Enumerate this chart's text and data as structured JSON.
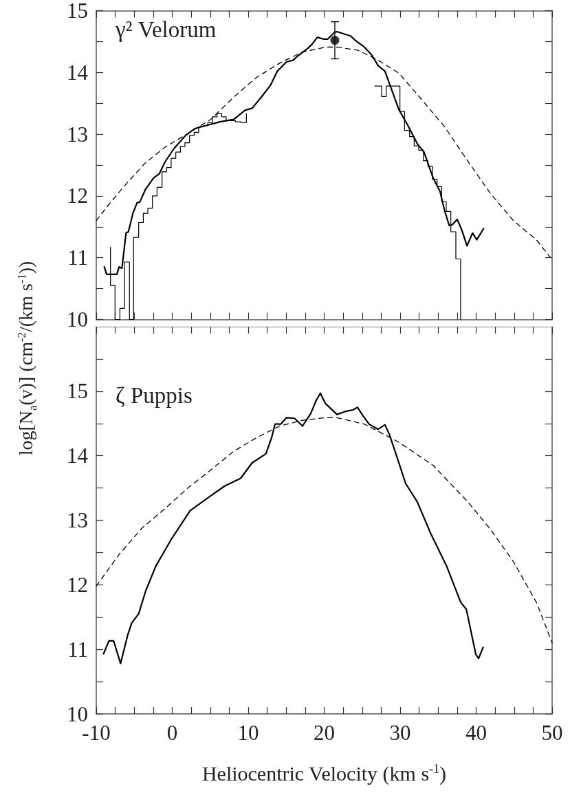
{
  "chart_data": [
    {
      "type": "line",
      "ylabel": "log[N$_{a}$(v)] (cm$^{-2}$/(km s$^{-1}$))",
      "annotations": [
        "γ² Velorum"
      ],
      "xlim": [
        -10,
        50
      ],
      "xticks": [
        -10,
        {
          "value": -7.5,
          "label": null
        },
        {
          "value": -5,
          "label": null
        },
        {
          "value": -2.5,
          "label": null
        },
        0,
        {
          "value": 2.5,
          "label": null
        },
        {
          "value": 5,
          "label": null
        },
        {
          "value": 7.5,
          "label": null
        },
        10,
        {
          "value": 12.5,
          "label": null
        },
        {
          "value": 15,
          "label": null
        },
        {
          "value": 17.5,
          "label": null
        },
        20,
        {
          "value": 22.5,
          "label": null
        },
        {
          "value": 25,
          "label": null
        },
        {
          "value": 27.5,
          "label": null
        },
        30,
        {
          "value": 32.5,
          "label": null
        },
        {
          "value": 35,
          "label": null
        },
        {
          "value": 37.5,
          "label": null
        },
        40,
        {
          "value": 42.5,
          "label": null
        },
        {
          "value": 45,
          "label": null
        },
        {
          "value": 47.5,
          "label": null
        },
        50
      ],
      "ylim": [
        10,
        15
      ],
      "yticks": [
        10,
        {
          "value": 10.5,
          "label": null
        },
        11,
        {
          "value": 11.5,
          "label": null
        },
        12,
        {
          "value": 12.5,
          "label": null
        },
        13,
        {
          "value": 13.5,
          "label": null
        },
        14,
        {
          "value": 14.5,
          "label": null
        },
        15
      ],
      "tick_labels": "y",
      "series": [
        {
          "type": "line",
          "color": "#000000",
          "line_style": "solid",
          "marker": "none",
          "x": [
            -8.94,
            -8.64,
            -7.29,
            -6.99,
            -6.62,
            -6.08,
            -5.77,
            -5.17,
            -4.63,
            -4.27,
            -3.51,
            -2.46,
            -1.7,
            -0.95,
            0.25,
            1.76,
            2.97,
            4.48,
            6.29,
            8.1,
            8.71,
            9.61,
            10.52,
            11.72,
            12.92,
            13.83,
            15.04,
            15.94,
            16.55,
            17.75,
            18.36,
            19.11,
            19.86,
            20.47,
            21.37,
            21.67,
            23.48,
            24.08,
            25.29,
            26.2,
            27.1,
            28.0,
            28.91,
            29.82,
            31.02,
            32.23,
            33.14,
            34.34,
            35.25,
            35.85,
            36.46,
            36.91,
            37.51,
            38.11,
            38.8,
            39.53,
            40.08,
            40.98
          ],
          "values": [
            10.85,
            10.73,
            10.73,
            10.85,
            10.83,
            11.4,
            11.42,
            11.72,
            11.89,
            11.9,
            12.11,
            12.29,
            12.36,
            12.55,
            12.77,
            12.98,
            13.09,
            13.14,
            13.2,
            13.24,
            13.3,
            13.39,
            13.42,
            13.6,
            13.79,
            14.02,
            14.17,
            14.2,
            14.27,
            14.38,
            14.45,
            14.57,
            14.54,
            14.54,
            14.65,
            14.66,
            14.59,
            14.52,
            14.41,
            14.29,
            14.11,
            14.02,
            13.71,
            13.4,
            13.14,
            12.85,
            12.71,
            12.29,
            12.07,
            11.76,
            11.52,
            11.54,
            11.62,
            11.45,
            11.19,
            11.4,
            11.29,
            11.47
          ]
        },
        {
          "type": "step",
          "color": "#000000",
          "line_style": "solid",
          "marker": "none",
          "x": [
            -8.13,
            -8.13,
            -7.53,
            -6.89,
            -6.29,
            -5.63,
            -5.09,
            -4.42,
            -3.81,
            -3.21,
            -2.61,
            -2.0,
            -1.34,
            -0.74,
            -0.14,
            0.47,
            1.07,
            1.67,
            2.28,
            2.88,
            3.48,
            4.09,
            4.69,
            5.29,
            5.9,
            6.5,
            7.1,
            8.31,
            9.0,
            9.76
          ],
          "values": [
            11.17,
            10.55,
            10,
            10.18,
            10.93,
            10,
            11.33,
            11.57,
            11.72,
            11.8,
            12.0,
            12.14,
            12.39,
            12.46,
            12.61,
            12.71,
            12.8,
            12.86,
            12.98,
            13.03,
            13.12,
            13.14,
            13.19,
            13.28,
            13.33,
            13.28,
            13.22,
            13.2,
            13.19,
            13.33
          ]
        },
        {
          "type": "step",
          "color": "#000000",
          "line_style": "solid",
          "marker": "none",
          "x": [
            26.65,
            27.56,
            28.16,
            29.97,
            30.57,
            31.24,
            31.84,
            32.44,
            33.05,
            33.65,
            34.25,
            34.86,
            35.46,
            36.06,
            36.67,
            37.33,
            37.96
          ],
          "values": [
            13.78,
            13.61,
            13.78,
            13.37,
            13.06,
            12.96,
            12.81,
            12.74,
            12.57,
            12.48,
            12.27,
            12.15,
            11.91,
            11.75,
            11.42,
            10.98,
            10
          ]
        },
        {
          "type": "line",
          "color": "#000000",
          "line_style": "dashed",
          "marker": "none",
          "x": [
            -10,
            -8.49,
            -6.38,
            -3.67,
            -0.95,
            2.06,
            5.08,
            8.1,
            11.11,
            14.13,
            17.15,
            20.16,
            21.67,
            24.39,
            26.8,
            29.82,
            32.83,
            35.85,
            38.87,
            41.88,
            44.9,
            47.92,
            49.73
          ],
          "values": [
            11.6,
            11.84,
            12.15,
            12.52,
            12.79,
            13.01,
            13.24,
            13.6,
            13.92,
            14.15,
            14.33,
            14.41,
            14.41,
            14.36,
            14.22,
            13.99,
            13.56,
            13.12,
            12.57,
            12.04,
            11.6,
            11.29,
            11.01
          ]
        },
        {
          "type": "scatter",
          "color": "#000000",
          "marker": "circle",
          "x": [
            21.4
          ],
          "values": [
            14.52
          ],
          "errors": [
            0.3
          ]
        }
      ]
    },
    {
      "type": "line",
      "xlabel": "Heliocentric Velocity (km s$^{-1}$)",
      "annotations": [
        "ζ Puppis"
      ],
      "xlim": [
        -10,
        50
      ],
      "xticks": [
        -10,
        {
          "value": -7.5,
          "label": null
        },
        {
          "value": -5,
          "label": null
        },
        {
          "value": -2.5,
          "label": null
        },
        0,
        {
          "value": 2.5,
          "label": null
        },
        {
          "value": 5,
          "label": null
        },
        {
          "value": 7.5,
          "label": null
        },
        10,
        {
          "value": 12.5,
          "label": null
        },
        {
          "value": 15,
          "label": null
        },
        {
          "value": 17.5,
          "label": null
        },
        20,
        {
          "value": 22.5,
          "label": null
        },
        {
          "value": 25,
          "label": null
        },
        {
          "value": 27.5,
          "label": null
        },
        30,
        {
          "value": 32.5,
          "label": null
        },
        {
          "value": 35,
          "label": null
        },
        {
          "value": 37.5,
          "label": null
        },
        40,
        {
          "value": 42.5,
          "label": null
        },
        {
          "value": 45,
          "label": null
        },
        {
          "value": 47.5,
          "label": null
        },
        50
      ],
      "ylim": [
        10,
        16
      ],
      "yticks": [
        10,
        {
          "value": 10.5,
          "label": null
        },
        11,
        {
          "value": 11.5,
          "label": null
        },
        12,
        {
          "value": 12.5,
          "label": null
        },
        13,
        {
          "value": 13.5,
          "label": null
        },
        14,
        {
          "value": 14.5,
          "label": null
        },
        15,
        {
          "value": 15.5,
          "label": null
        }
      ],
      "series": [
        {
          "type": "line",
          "color": "#000000",
          "line_style": "solid",
          "marker": "none",
          "x": [
            -9.04,
            -8.33,
            -7.71,
            -6.8,
            -5.84,
            -5.32,
            -4.42,
            -3.51,
            -2.16,
            -0.05,
            2.37,
            5.08,
            6.9,
            9.0,
            10.52,
            12.33,
            13.08,
            13.53,
            14.28,
            15.04,
            16.09,
            17.15,
            18.21,
            18.96,
            19.5,
            20.16,
            21.67,
            22.88,
            23.78,
            24.39,
            24.99,
            25.9,
            27.1,
            28.0,
            28.61,
            29.52,
            30.72,
            32.23,
            34.04,
            36.15,
            37.96,
            38.71,
            39.96,
            40.33,
            40.91
          ],
          "values": [
            10.93,
            11.13,
            11.13,
            10.78,
            11.23,
            11.41,
            11.55,
            11.9,
            12.29,
            12.72,
            13.15,
            13.38,
            13.53,
            13.65,
            13.89,
            14.03,
            14.28,
            14.49,
            14.49,
            14.59,
            14.58,
            14.46,
            14.65,
            14.86,
            14.97,
            14.81,
            14.64,
            14.69,
            14.71,
            14.75,
            14.64,
            14.49,
            14.41,
            14.48,
            14.32,
            14.0,
            13.57,
            13.29,
            12.79,
            12.28,
            11.73,
            11.62,
            10.92,
            10.86,
            11.03
          ]
        },
        {
          "type": "line",
          "color": "#000000",
          "line_style": "dashed",
          "marker": "none",
          "x": [
            -10,
            -6.99,
            -3.97,
            -0.95,
            2.06,
            5.08,
            8.1,
            11.11,
            14.13,
            17.15,
            20.16,
            21.67,
            25.29,
            29.82,
            34.34,
            38.87,
            41.88,
            44.9,
            47.92,
            49.12,
            50
          ],
          "values": [
            11.98,
            12.47,
            12.88,
            13.18,
            13.5,
            13.78,
            14.07,
            14.28,
            14.46,
            14.55,
            14.59,
            14.59,
            14.49,
            14.21,
            13.85,
            13.29,
            12.86,
            12.36,
            11.73,
            11.37,
            11.1
          ]
        }
      ]
    }
  ]
}
